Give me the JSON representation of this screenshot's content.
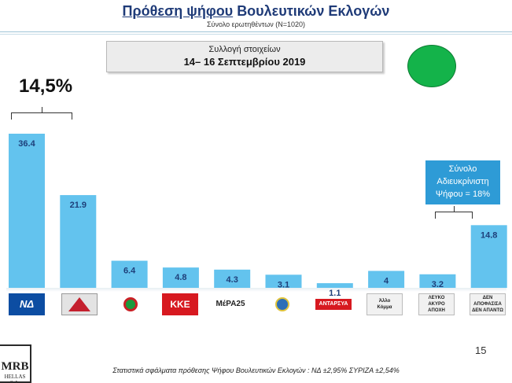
{
  "header": {
    "title_part1": "Πρόθεση ψήφου",
    "title_part2": "Βουλευτικών Εκλογών",
    "subtitle": "Σύνολο ερωτηθέντων (N=1020)"
  },
  "collection": {
    "label": "Συλλογή στοιχείων",
    "dates": "14– 16 Σεπτεμβρίου 2019"
  },
  "lead_value": "14,5%",
  "undecided_note": {
    "line1": "Σύνολο",
    "line2": "Αδιευκρίνιστη",
    "line3": "Ψήφου = 18%"
  },
  "colors": {
    "bar": "#63c3ee",
    "bar_label": "#1e3f7a",
    "note_bg": "#2e9bd6",
    "status_dot": "#14b34a"
  },
  "logos": {
    "nd": "ΝΔ",
    "kke": "ΚΚΕ",
    "mera": "ΜέΡΑ25",
    "antarsya": "ΑΝΤΑΡΣΥΑ",
    "allo_line1": "Άλλο",
    "allo_line2": "Κόμμα",
    "leuko_line1": "ΛΕΥΚΟ",
    "leuko_line2": "ΑΚΥΡΟ",
    "leuko_line3": "ΑΠΟΧΗ",
    "den_line1": "ΔΕΝ",
    "den_line2": "ΑΠΟΦΑΣΙΣΑ",
    "den_line3": "ΔΕΝ ΑΠΑΝΤΩ"
  },
  "page_number": "15",
  "footer": "Στατιστικά σφάλματα πρόθεσης Ψήφου Βουλευτικών Εκλογών : ΝΔ ±2,95% ΣΥΡΙΖΑ ±2,54%",
  "mrb_logo": {
    "name": "MRB",
    "sub": "HELLAS S.A."
  },
  "chart_data": {
    "type": "bar",
    "categories": [
      "ΝΔ",
      "ΣΥΡΙΖΑ",
      "ΚΙΝΑΛ",
      "ΚΚΕ",
      "ΜέΡΑ25",
      "Ελληνική Λύση",
      "ΑΝΤΑΡΣΥΑ",
      "Άλλο Κόμμα",
      "ΛΕΥΚΟ ΑΚΥΡΟ ΑΠΟΧΗ",
      "ΔΕΝ ΑΠΟΦΑΣΙΣΑ ΔΕΝ ΑΠΑΝΤΩ"
    ],
    "values": [
      36.4,
      21.9,
      6.4,
      4.8,
      4.3,
      3.1,
      1.1,
      4,
      3.2,
      14.8
    ],
    "value_labels": [
      "36.4",
      "21.9",
      "6.4",
      "4.8",
      "4.3",
      "3.1",
      "1.1",
      "4",
      "3.2",
      "14.8"
    ],
    "ylim": [
      0,
      36.4
    ]
  }
}
